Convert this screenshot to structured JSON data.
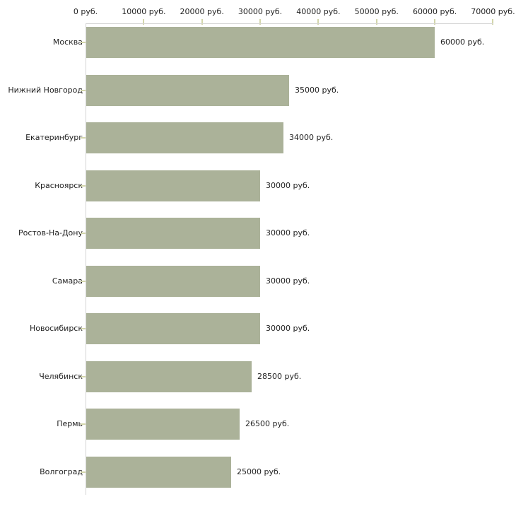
{
  "chart_data": {
    "type": "bar",
    "orientation": "horizontal",
    "title": "",
    "xlabel": "",
    "ylabel": "",
    "categories": [
      "Москва",
      "Нижний Новгород",
      "Екатеринбург",
      "Красноярск",
      "Ростов-На-Дону",
      "Самара",
      "Новосибирск",
      "Челябинск",
      "Пермь",
      "Волгоград"
    ],
    "values": [
      60000,
      35000,
      34000,
      30000,
      30000,
      30000,
      30000,
      28500,
      26500,
      25000
    ],
    "value_labels": [
      "60000 руб.",
      "35000 руб.",
      "34000 руб.",
      "30000 руб.",
      "30000 руб.",
      "30000 руб.",
      "30000 руб.",
      "28500 руб.",
      "26500 руб.",
      "25000 руб."
    ],
    "x_ticks": [
      0,
      10000,
      20000,
      30000,
      40000,
      50000,
      60000,
      70000
    ],
    "x_tick_labels": [
      "0 руб.",
      "10000 руб.",
      "20000 руб.",
      "30000 руб.",
      "40000 руб.",
      "50000 руб.",
      "60000 руб.",
      "70000 руб."
    ],
    "xlim": [
      0,
      70000
    ],
    "grid": false,
    "legend": "none",
    "unit_suffix": " руб.",
    "colors": {
      "bar": "#abb299",
      "axis_line": "#d4d4d4",
      "tick": "#d3d6ab",
      "text": "#222222",
      "background": "#ffffff"
    }
  }
}
